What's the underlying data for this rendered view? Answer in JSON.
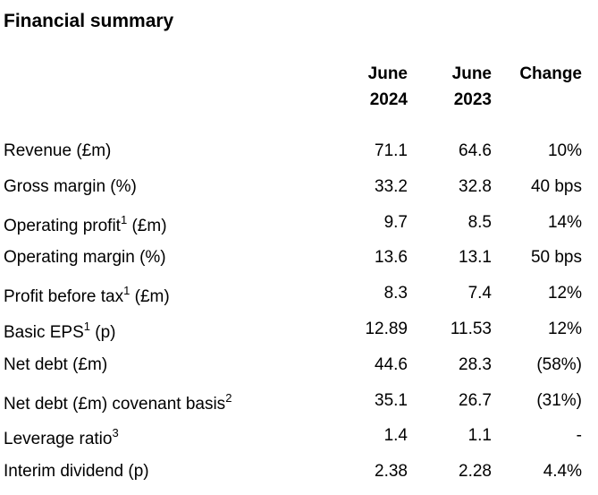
{
  "title": "Financial summary",
  "columns": [
    {
      "line1": "June",
      "line2": "2024"
    },
    {
      "line1": "June",
      "line2": "2023"
    },
    {
      "line1": "Change",
      "line2": ""
    }
  ],
  "rows": [
    {
      "label": "Revenue (£m)",
      "label_pre": "Revenue (£m)",
      "sup": "",
      "label_post": "",
      "v2024": "71.1",
      "v2023": "64.6",
      "change": "10%"
    },
    {
      "label": "Gross margin (%)",
      "label_pre": "Gross margin (%)",
      "sup": "",
      "label_post": "",
      "v2024": "33.2",
      "v2023": "32.8",
      "change": "40 bps"
    },
    {
      "label": "Operating profit1 (£m)",
      "label_pre": "Operating profit",
      "sup": "1",
      "label_post": " (£m)",
      "v2024": "9.7",
      "v2023": "8.5",
      "change": "14%"
    },
    {
      "label": "Operating margin (%)",
      "label_pre": "Operating margin (%)",
      "sup": "",
      "label_post": "",
      "v2024": "13.6",
      "v2023": "13.1",
      "change": "50 bps"
    },
    {
      "label": "Profit before tax1 (£m)",
      "label_pre": "Profit before tax",
      "sup": "1",
      "label_post": " (£m)",
      "v2024": "8.3",
      "v2023": "7.4",
      "change": "12%"
    },
    {
      "label": "Basic EPS1 (p)",
      "label_pre": "Basic EPS",
      "sup": "1",
      "label_post": " (p)",
      "v2024": "12.89",
      "v2023": "11.53",
      "change": "12%"
    },
    {
      "label": "Net debt (£m)",
      "label_pre": "Net debt (£m)",
      "sup": "",
      "label_post": "",
      "v2024": "44.6",
      "v2023": "28.3",
      "change": "(58%)"
    },
    {
      "label": "Net debt (£m) covenant basis2",
      "label_pre": "Net debt (£m) covenant basis",
      "sup": "2",
      "label_post": "",
      "v2024": "35.1",
      "v2023": "26.7",
      "change": "(31%)"
    },
    {
      "label": "Leverage ratio3",
      "label_pre": "Leverage ratio",
      "sup": "3",
      "label_post": "",
      "v2024": "1.4",
      "v2023": "1.1",
      "change": "-"
    },
    {
      "label": "Interim dividend (p)",
      "label_pre": "Interim dividend (p)",
      "sup": "",
      "label_post": "",
      "v2024": "2.38",
      "v2023": "2.28",
      "change": "4.4%"
    }
  ]
}
